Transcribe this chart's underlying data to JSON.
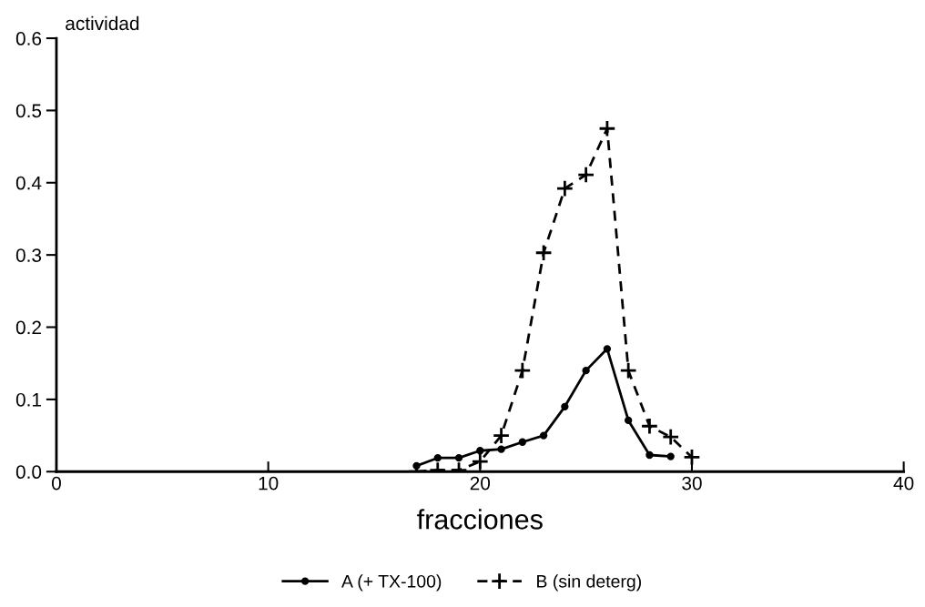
{
  "chart_data": {
    "type": "line",
    "ylabel": "actividad",
    "xlabel": "fracciones",
    "xlim": [
      0,
      40
    ],
    "xticks": [
      0,
      10,
      20,
      30,
      40
    ],
    "ylim": [
      0,
      0.6
    ],
    "yticks": [
      {
        "value": 0,
        "label": "0.0"
      },
      0.1,
      0.2,
      0.3,
      0.4,
      0.5,
      0.6
    ],
    "grid": false,
    "legend": "bottom",
    "series": [
      {
        "name": "A (+ TX-100)",
        "color": "#000000",
        "marker": "circle",
        "line_style": "solid",
        "x": [
          17,
          18,
          19,
          20,
          21,
          22,
          23,
          24,
          25,
          26,
          27,
          28,
          29
        ],
        "values": [
          0.008,
          0.019,
          0.019,
          0.029,
          0.031,
          0.041,
          0.05,
          0.09,
          0.14,
          0.17,
          0.071,
          0.023,
          0.021
        ]
      },
      {
        "name": "B (sin deterg)",
        "color": "#000000",
        "marker": "cross",
        "line_style": "dashed",
        "x": [
          17,
          18,
          19,
          20,
          21,
          22,
          23,
          24,
          25,
          26,
          27,
          28,
          29,
          30
        ],
        "values": [
          0.0,
          0.002,
          0.002,
          0.014,
          0.05,
          0.14,
          0.303,
          0.392,
          0.411,
          0.475,
          0.14,
          0.063,
          0.048,
          0.02
        ]
      }
    ]
  }
}
